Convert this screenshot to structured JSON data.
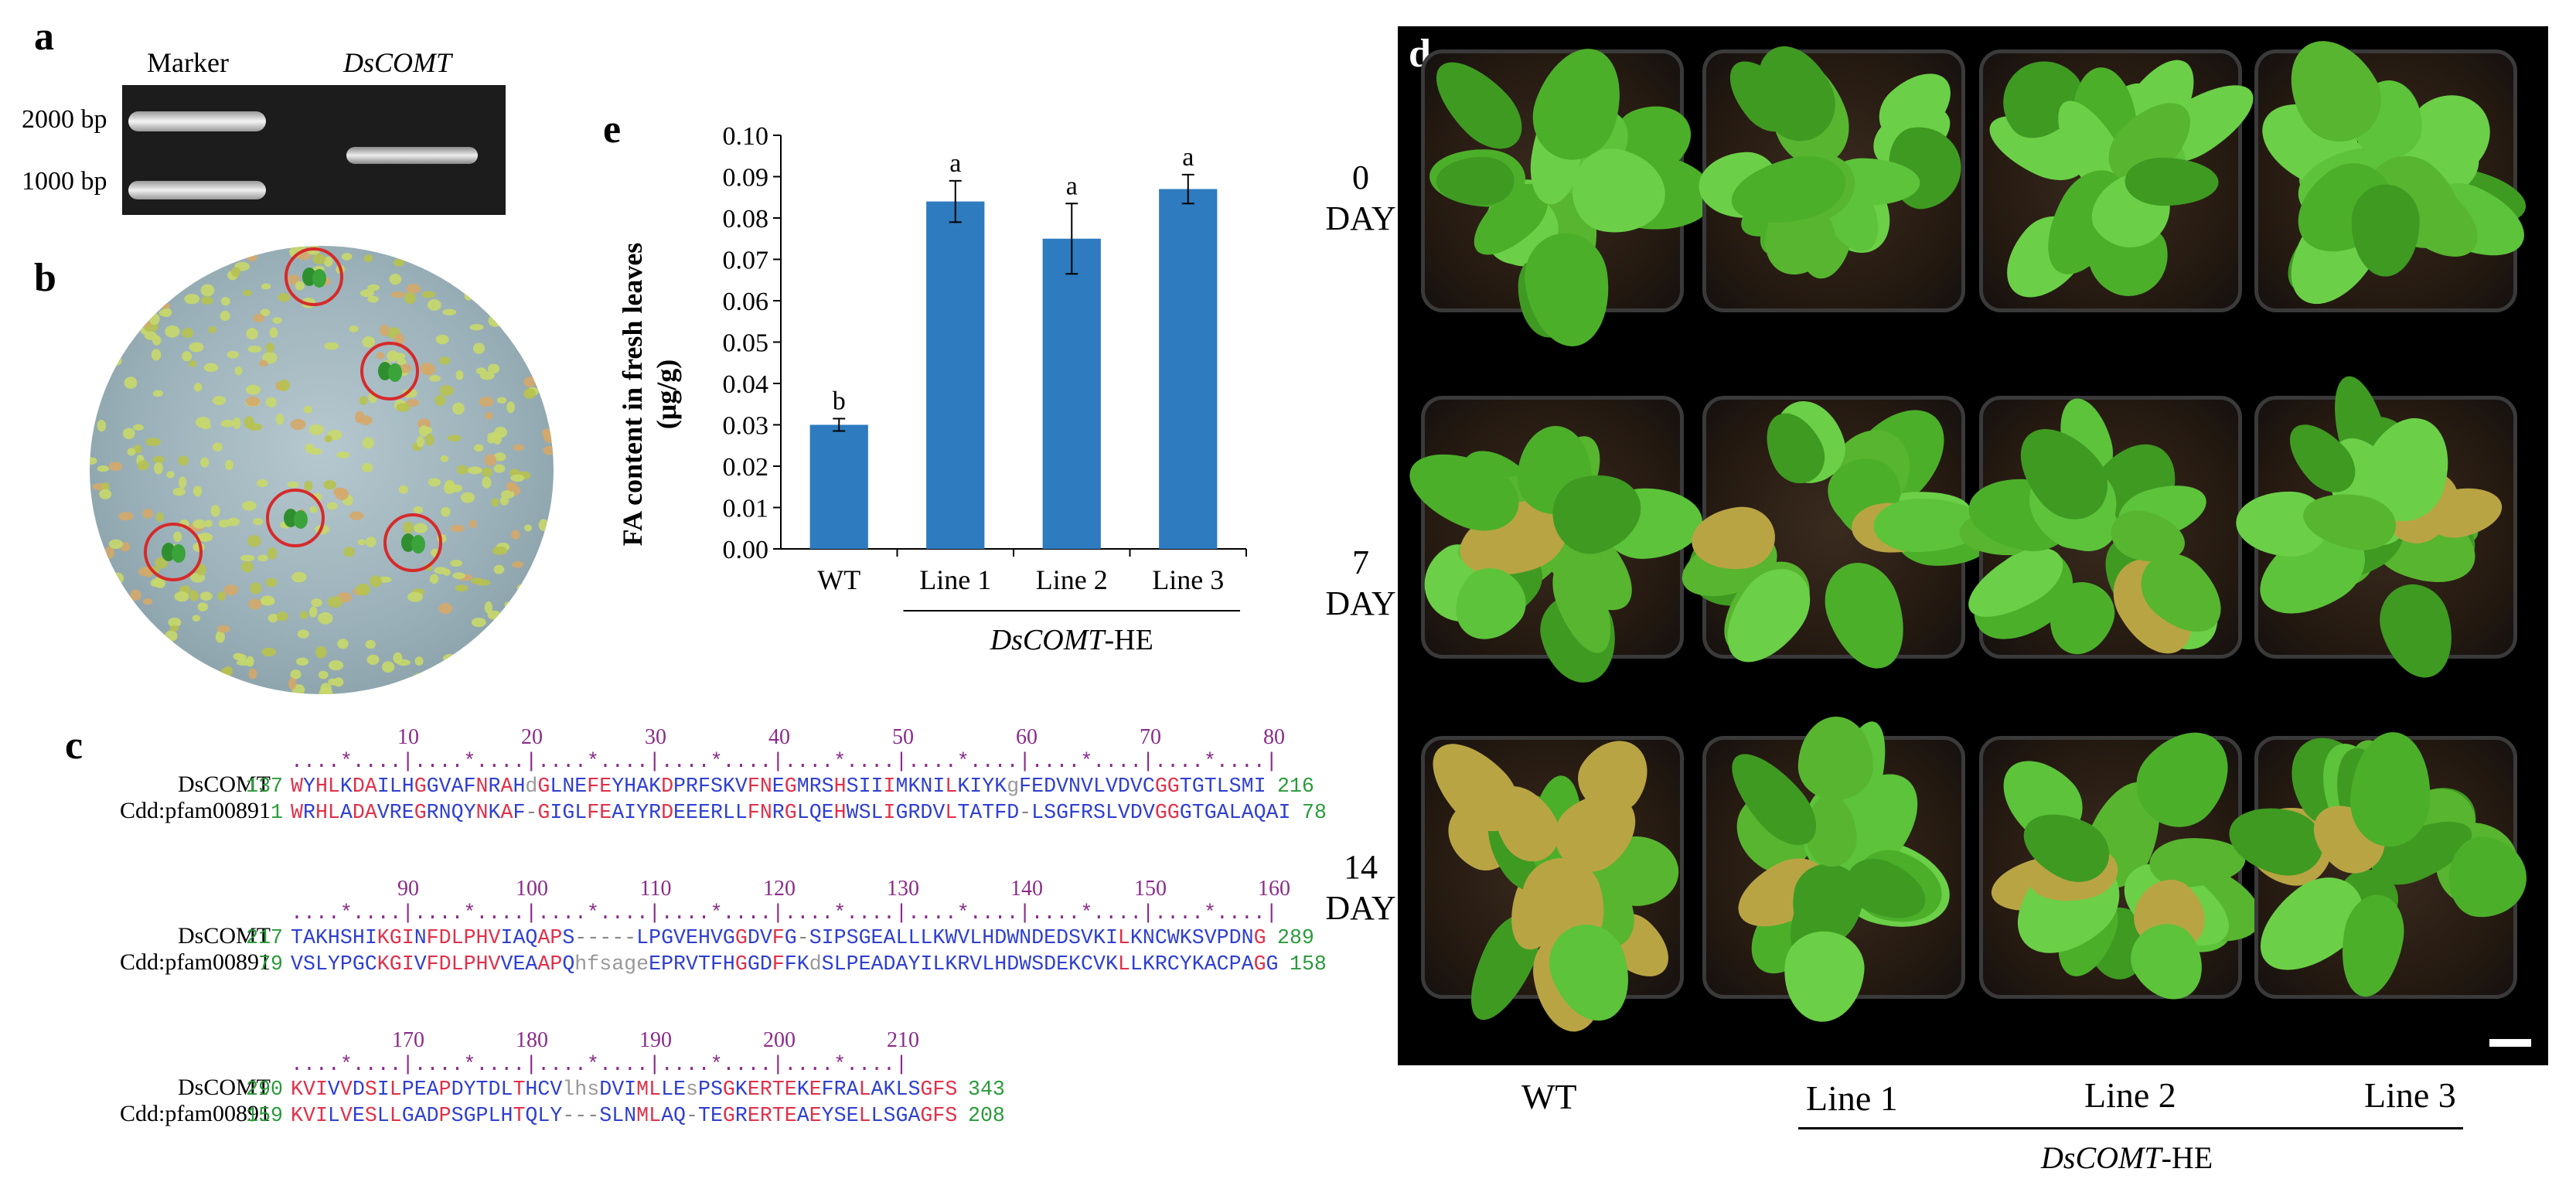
{
  "panels": {
    "a": {
      "letter": "a",
      "lane_labels": [
        "Marker",
        "DsCOMT"
      ],
      "size_labels": [
        "2000 bp",
        "1000 bp"
      ]
    },
    "b": {
      "letter": "b"
    },
    "c": {
      "letter": "c",
      "blocks": [
        {
          "ruler_numbers": [
            "10",
            "20",
            "30",
            "40",
            "50",
            "60",
            "70",
            "80"
          ],
          "ruler_line": "....*....|....*....|....*....|....*....|....*....|....*....|....*....|....*....|",
          "rows": [
            {
              "name": "DsCOMT",
              "start": "137",
              "seq": "WYHLKDAILHGGVAFNRAHdGLNEFEYHAKDPRFSKVFNEGMRSHSIIIMKNILKIYKgFEDVNVLVDVCGGTGTLSMI",
              "end": "216"
            },
            {
              "name": "Cdd:pfam00891",
              "start": "1",
              "seq": "WRHLADAVREGRNQYNKAF-GIGLFEAIYRDEEERLLFNRGLQEHWSLIGRDVLTATFD-LSGFRSLVDVGGGTGALAQAI",
              "end": "78"
            }
          ]
        },
        {
          "ruler_numbers": [
            "90",
            "100",
            "110",
            "120",
            "130",
            "140",
            "150",
            "160"
          ],
          "ruler_line": "....*....|....*....|....*....|....*....|....*....|....*....|....*....|....*....|",
          "rows": [
            {
              "name": "DsCOMT",
              "start": "217",
              "seq": "TAKHSHIKGINFDLPHVIAQAPS-----LPGVEHVGGDVFG-SIPSGEALLLKWVLHDWNDEDSVKILKNCWKSVPDNG",
              "end": "289"
            },
            {
              "name": "Cdd:pfam00891",
              "start": "79",
              "seq": "VSLYPGCKGIVFDLPHVVEAAPQhfsageEPRVTFHGGDFFKdSLPEADAYILKRVLHDWSDEKCVKLLKRCYKACPAGG",
              "end": "158"
            }
          ]
        },
        {
          "ruler_numbers": [
            "170",
            "180",
            "190",
            "200",
            "210"
          ],
          "ruler_line": "....*....|....*....|....*....|....*....|....*....|",
          "rows": [
            {
              "name": "DsCOMT",
              "start": "290",
              "seq": "KVIVVDSILPEAPDYTDLTHCVlhsDVIMLLEsPSGKERTEKEFRALAKLSGFS",
              "end": "343"
            },
            {
              "name": "Cdd:pfam00891",
              "start": "159",
              "seq": "KVILVESLLGADPSGPLHTQLY---SLNMLAQ-TEGRERTEAEYSELLSGAGFS",
              "end": "208"
            }
          ]
        }
      ]
    },
    "d": {
      "letter": "d",
      "day_labels": [
        {
          "num": "0",
          "word": "DAY"
        },
        {
          "num": "7",
          "word": "DAY"
        },
        {
          "num": "14",
          "word": "DAY"
        }
      ],
      "column_labels": [
        "WT",
        "Line 1",
        "Line 2",
        "Line 3"
      ],
      "group_label_italic": "DsCOMT",
      "group_label_suffix": "-HE"
    },
    "e": {
      "letter": "e"
    }
  },
  "chart_data": {
    "type": "bar",
    "categories": [
      "WT",
      "Line 1",
      "Line 2",
      "Line 3"
    ],
    "values": [
      0.03,
      0.084,
      0.075,
      0.087
    ],
    "errors": [
      0.0015,
      0.005,
      0.0085,
      0.0035
    ],
    "significance": [
      "b",
      "a",
      "a",
      "a"
    ],
    "ylabel_line1": "FA content in fresh leaves",
    "ylabel_line2": "(μg/g)",
    "ylim": [
      0,
      0.1
    ],
    "yticks": [
      "0.00",
      "0.01",
      "0.02",
      "0.03",
      "0.04",
      "0.05",
      "0.06",
      "0.07",
      "0.08",
      "0.09",
      "0.10"
    ],
    "group_label_italic": "DsCOMT",
    "group_label_suffix": "-HE",
    "bar_color": "#2e7bbf",
    "grid": false
  }
}
